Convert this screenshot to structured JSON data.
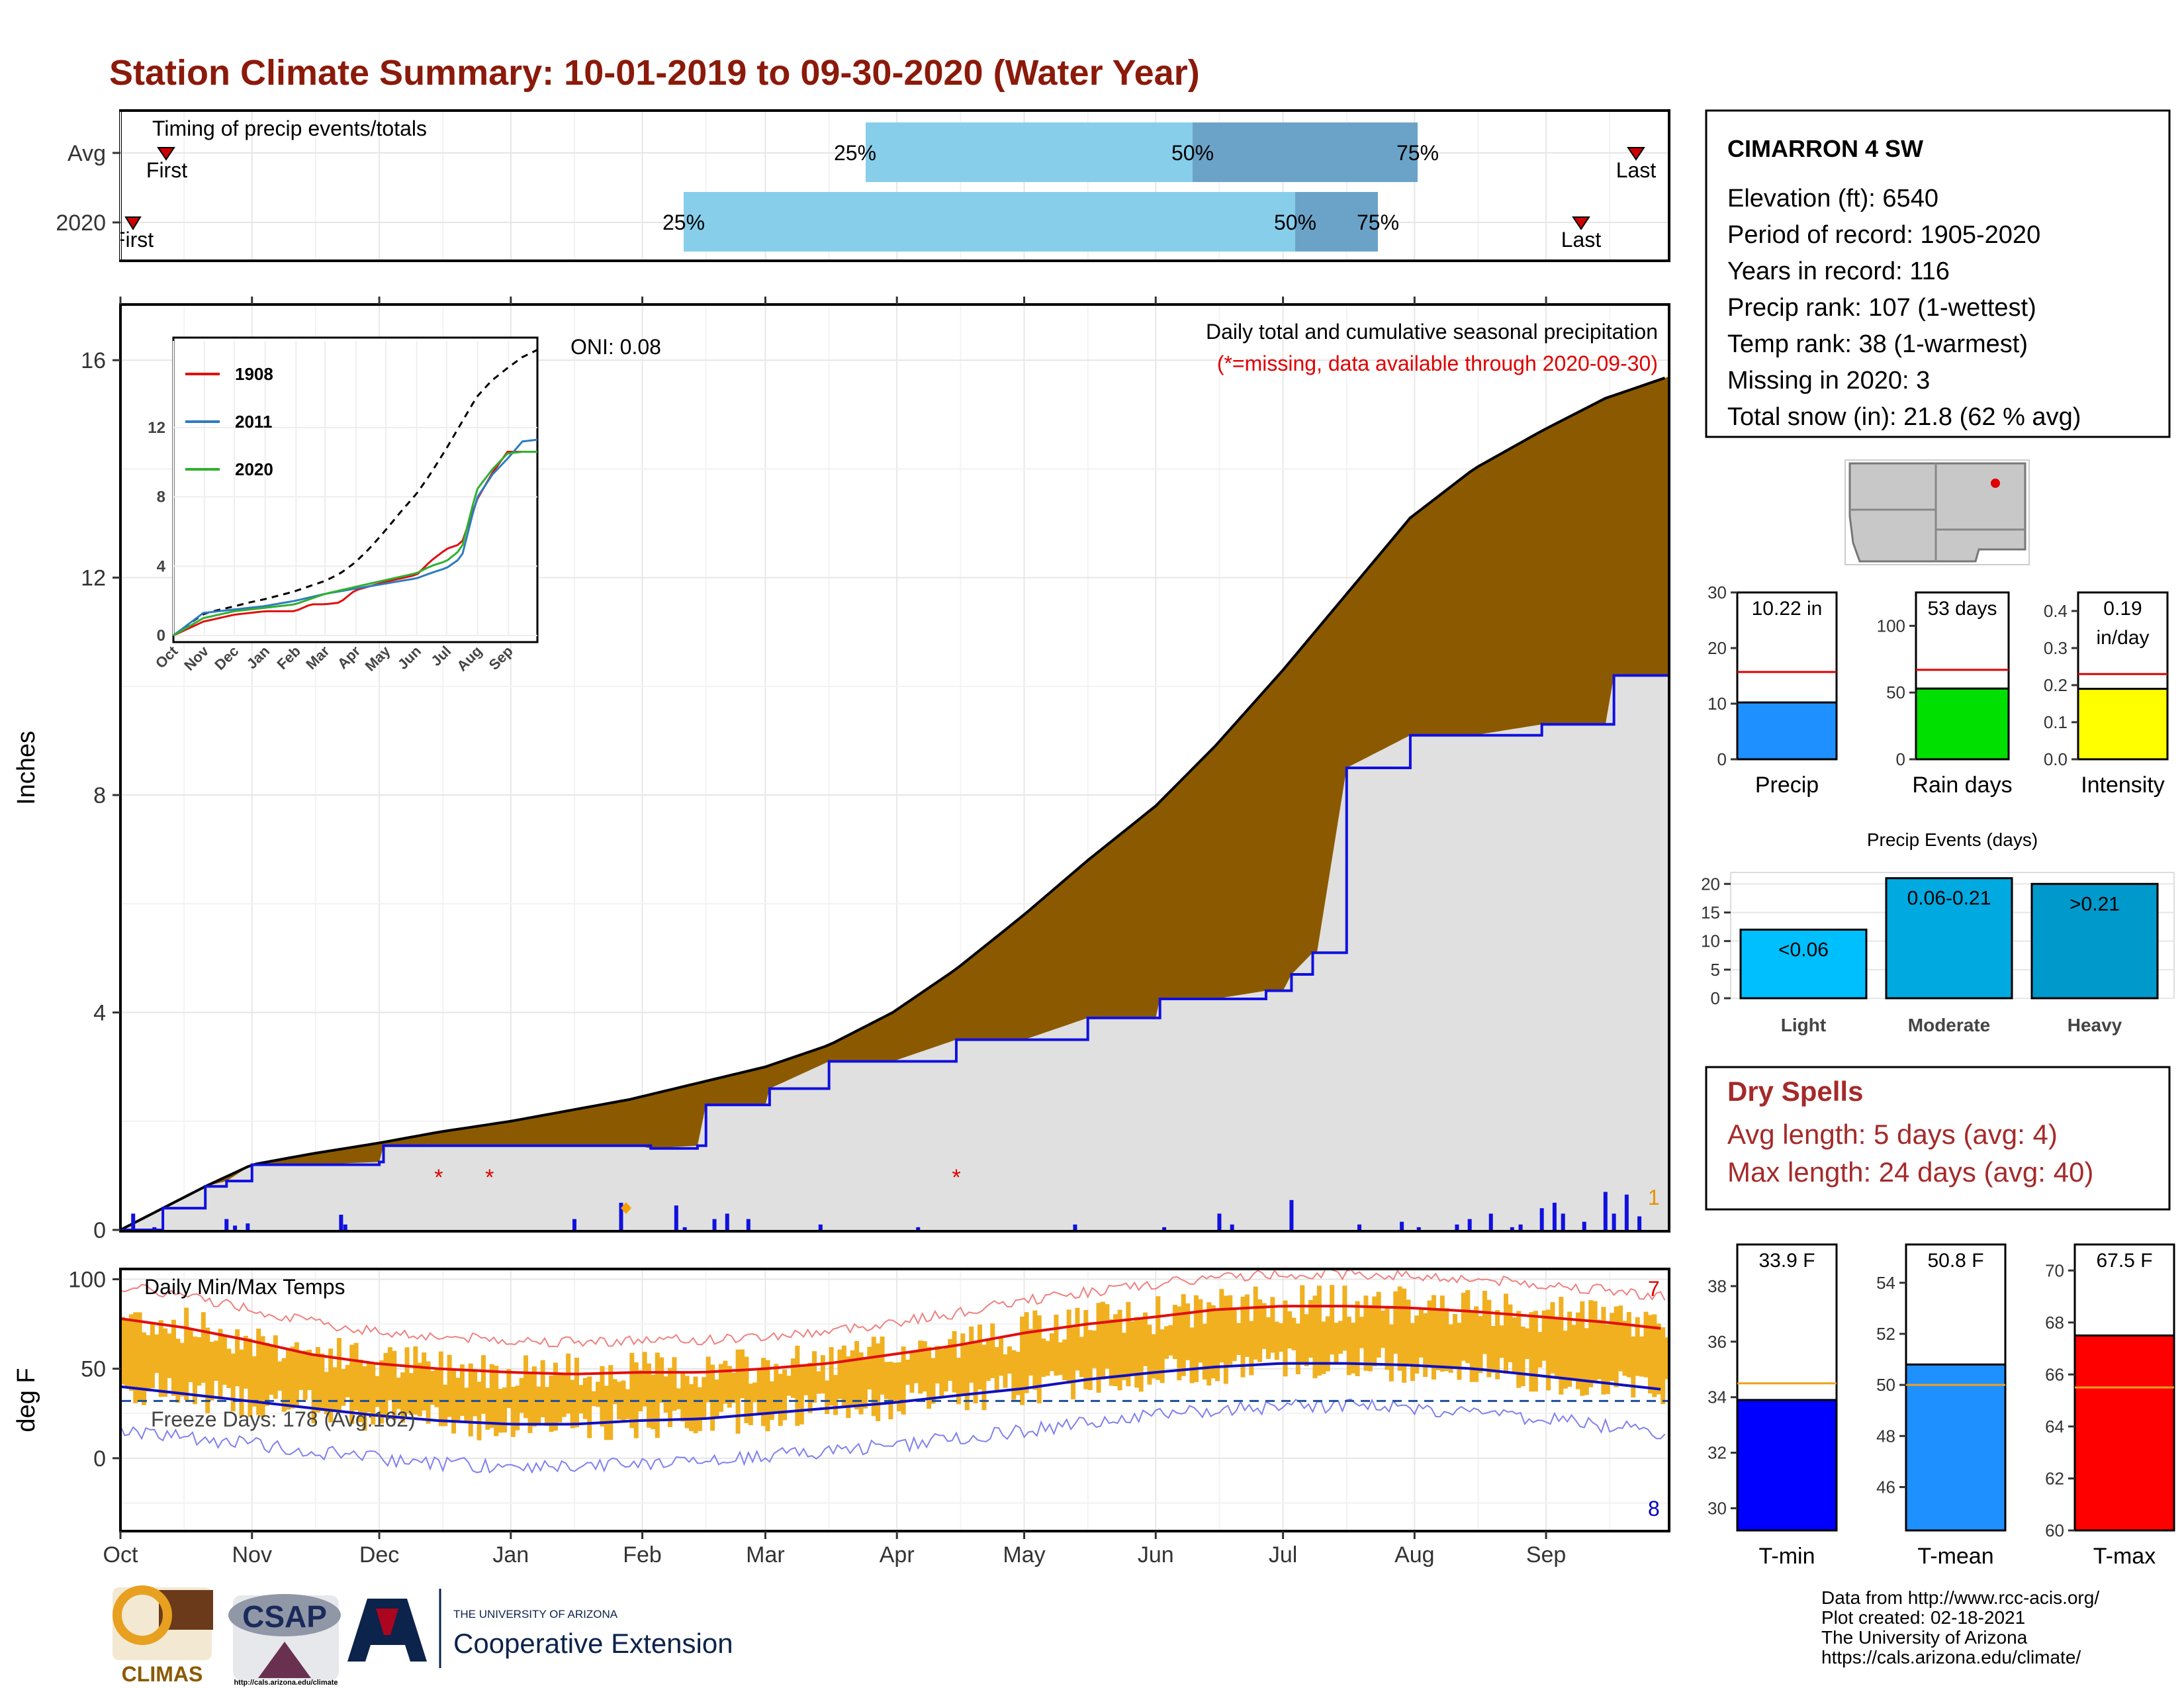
{
  "title": "Station Climate Summary: 10-01-2019 to 09-30-2020 (Water Year)",
  "colors": {
    "title": "#8B1A0A",
    "ribbon": "#8B5A00",
    "wet": "#2E9E2E",
    "line": "#1010E0",
    "fill": "#E0E0E0",
    "bar": "#1010E0",
    "temp": "#F0B020",
    "tmaxAvg": "#E01010",
    "tminAvg": "#1010C0",
    "q1": "#87CEEB",
    "q2": "#6BA3C8",
    "dry": "#A52A2A"
  },
  "timing": {
    "label": "Timing of precip events/totals",
    "rows": [
      "Avg",
      "2020"
    ],
    "avg": {
      "first": "First",
      "last": "Last",
      "q25": "25%",
      "q50": "50%",
      "q75": "75%"
    },
    "y2020": {
      "first": "First",
      "last": "Last",
      "q25": "25%",
      "q50": "50%",
      "q75": "75%"
    }
  },
  "chart_data": [
    {
      "type": "area",
      "title": "Daily total and cumulative seasonal precipitation",
      "subtitle": "(*=missing, data available through 2020-09-30)",
      "ylabel": "Inches",
      "ylim": [
        0,
        17
      ],
      "yticks": [
        "0",
        "4",
        "8",
        "12",
        "16"
      ],
      "months": [
        "Oct",
        "Nov",
        "Dec",
        "Jan",
        "Feb",
        "Mar",
        "Apr",
        "May",
        "Jun",
        "Jul",
        "Aug",
        "Sep"
      ],
      "oni": "ONI: 0.08",
      "note_snow": "1",
      "avg_cumulative": {
        "x": [
          0,
          10,
          20,
          31,
          45,
          61,
          75,
          92,
          106,
          120,
          136,
          152,
          167,
          182,
          197,
          213,
          228,
          244,
          258,
          274,
          289,
          304,
          319,
          335,
          350,
          365
        ],
        "y": [
          0.0,
          0.4,
          0.8,
          1.2,
          1.4,
          1.6,
          1.8,
          2.0,
          2.2,
          2.4,
          2.7,
          3.0,
          3.4,
          4.0,
          4.8,
          5.8,
          6.8,
          7.8,
          8.9,
          10.3,
          11.7,
          13.1,
          14.0,
          14.7,
          15.3,
          15.7
        ]
      },
      "y2020_cumulative": {
        "x": [
          0,
          10,
          20,
          25,
          31,
          45,
          61,
          62,
          78,
          80,
          92,
          106,
          107,
          122,
          125,
          136,
          138,
          152,
          153,
          167,
          175,
          182,
          197,
          213,
          228,
          244,
          245,
          258,
          270,
          274,
          276,
          281,
          282,
          289,
          304,
          306,
          319,
          335,
          350,
          352,
          365
        ],
        "y": [
          0.0,
          0.4,
          0.8,
          0.9,
          1.2,
          1.2,
          1.25,
          1.55,
          1.55,
          1.55,
          1.55,
          1.55,
          1.55,
          1.55,
          1.5,
          1.55,
          2.3,
          2.3,
          2.6,
          3.1,
          3.1,
          3.1,
          3.5,
          3.5,
          3.9,
          3.9,
          4.25,
          4.25,
          4.4,
          4.4,
          4.7,
          5.1,
          5.1,
          8.5,
          9.1,
          9.1,
          9.1,
          9.3,
          9.3,
          10.2,
          10.2
        ]
      },
      "daily_precip": [
        [
          3,
          0.3
        ],
        [
          8,
          0.05
        ],
        [
          25,
          0.2
        ],
        [
          27,
          0.08
        ],
        [
          30,
          0.12
        ],
        [
          52,
          0.28
        ],
        [
          53,
          0.1
        ],
        [
          107,
          0.2
        ],
        [
          118,
          0.5
        ],
        [
          131,
          0.45
        ],
        [
          133,
          0.05
        ],
        [
          140,
          0.2
        ],
        [
          143,
          0.3
        ],
        [
          148,
          0.2
        ],
        [
          165,
          0.1
        ],
        [
          188,
          0.05
        ],
        [
          225,
          0.1
        ],
        [
          246,
          0.05
        ],
        [
          259,
          0.3
        ],
        [
          262,
          0.1
        ],
        [
          276,
          0.55
        ],
        [
          292,
          0.1
        ],
        [
          302,
          0.15
        ],
        [
          306,
          0.05
        ],
        [
          315,
          0.1
        ],
        [
          318,
          0.2
        ],
        [
          323,
          0.3
        ],
        [
          328,
          0.05
        ],
        [
          330,
          0.1
        ],
        [
          335,
          0.4
        ],
        [
          338,
          0.5
        ],
        [
          340,
          0.3
        ],
        [
          345,
          0.15
        ],
        [
          350,
          0.7
        ],
        [
          352,
          0.3
        ],
        [
          355,
          0.65
        ],
        [
          358,
          0.25
        ]
      ],
      "missing_marks": [
        75,
        87,
        197
      ]
    },
    {
      "type": "line",
      "title": "Daily Min/Max Temps",
      "ylabel": "deg F",
      "ylim": [
        -40,
        105
      ],
      "yticks": [
        "0",
        "50",
        "100"
      ],
      "freeze_days": "Freeze Days: 178 (Avg:162)",
      "record_hi_count": "7",
      "record_lo_count": "8",
      "tmax_avg": {
        "x": [
          0,
          15,
          30,
          45,
          60,
          75,
          92,
          107,
          122,
          137,
          152,
          167,
          182,
          197,
          213,
          228,
          244,
          258,
          274,
          289,
          304,
          319,
          335,
          350,
          365
        ],
        "y": [
          78,
          73,
          66,
          58,
          53,
          50,
          48,
          47,
          48,
          48,
          50,
          53,
          58,
          63,
          70,
          75,
          79,
          83,
          85,
          85,
          84,
          82,
          79,
          76,
          72
        ]
      },
      "tmin_avg": {
        "x": [
          0,
          15,
          30,
          45,
          60,
          75,
          92,
          107,
          122,
          137,
          152,
          167,
          182,
          197,
          213,
          228,
          244,
          258,
          274,
          289,
          304,
          319,
          335,
          350,
          365
        ],
        "y": [
          40,
          36,
          32,
          28,
          24,
          21,
          19,
          19,
          21,
          22,
          25,
          28,
          31,
          35,
          39,
          44,
          48,
          51,
          53,
          53,
          52,
          50,
          46,
          42,
          38
        ]
      },
      "freeze_line": 32
    },
    {
      "type": "bar",
      "title": "Precip",
      "value_label": "10.22 in",
      "value": 10.22,
      "avg": 15.7,
      "ylim": [
        0,
        30
      ],
      "yticks": [
        "0",
        "10",
        "20",
        "30"
      ]
    },
    {
      "type": "bar",
      "title": "Rain days",
      "value_label": "53 days",
      "value": 53,
      "avg": 67,
      "ylim": [
        0,
        125
      ],
      "yticks": [
        "0",
        "50",
        "100"
      ]
    },
    {
      "type": "bar",
      "title": "Intensity",
      "value_label": "0.19",
      "value_label2": "in/day",
      "value": 0.19,
      "avg": 0.23,
      "ylim": [
        0,
        0.45
      ],
      "yticks": [
        "0.0",
        "0.1",
        "0.2",
        "0.3",
        "0.4"
      ]
    },
    {
      "type": "bar",
      "title": "Precip Events (days)",
      "categories": [
        "Light",
        "Moderate",
        "Heavy"
      ],
      "bar_labels": [
        "<0.06",
        "0.06-0.21",
        ">0.21"
      ],
      "values": [
        12,
        21,
        20
      ],
      "ylim": [
        0,
        22
      ],
      "yticks": [
        "0",
        "5",
        "10",
        "15",
        "20"
      ]
    },
    {
      "type": "bar",
      "title": "T-min",
      "value_label": "33.9 F",
      "value": 33.9,
      "avg": 34.5,
      "ylim": [
        29.2,
        39.5
      ],
      "yticks": [
        "30",
        "32",
        "34",
        "36",
        "38"
      ]
    },
    {
      "type": "bar",
      "title": "T-mean",
      "value_label": "50.8 F",
      "value": 50.8,
      "avg": 50.0,
      "ylim": [
        44.3,
        55.5
      ],
      "yticks": [
        "46",
        "48",
        "50",
        "52",
        "54"
      ]
    },
    {
      "type": "bar",
      "title": "T-max",
      "value_label": "67.5 F",
      "value": 67.5,
      "avg": 65.5,
      "ylim": [
        60,
        71
      ],
      "yticks": [
        "60",
        "62",
        "64",
        "66",
        "68",
        "70"
      ]
    }
  ],
  "inset": {
    "legend": [
      "1908",
      "2011",
      "2020"
    ],
    "legend_colors": [
      "#E01010",
      "#2E7BC0",
      "#30B030"
    ],
    "yticks": [
      "0",
      "4",
      "8",
      "12"
    ],
    "xticks": [
      "Oct",
      "Nov",
      "Dec",
      "Jan",
      "Feb",
      "Mar",
      "Apr",
      "May",
      "Jun",
      "Jul",
      "Aug",
      "Sep"
    ]
  },
  "station": {
    "name": "CIMARRON 4 SW",
    "lines": [
      "Elevation (ft): 6540",
      "Period of record: 1905-2020",
      "Years in record: 116",
      "Precip rank: 107 (1-wettest)",
      "Temp rank: 38 (1-warmest)",
      "Missing in 2020: 3",
      "Total snow (in): 21.8 (62 % avg)"
    ]
  },
  "dry_spells": {
    "title": "Dry Spells",
    "avg": "Avg length: 5 days (avg: 4)",
    "max": "Max length: 24 days (avg: 40)"
  },
  "credits": [
    "Data from http://www.rcc-acis.org/",
    "Plot created: 02-18-2021",
    "The University of Arizona",
    "https://cals.arizona.edu/climate/"
  ],
  "logos": {
    "climas": "CLIMAS",
    "csap": "CSAP",
    "csap_url": "http://cals.arizona.edu/climate",
    "ua_small": "THE UNIVERSITY OF ARIZONA",
    "ua_big": "Cooperative Extension"
  }
}
